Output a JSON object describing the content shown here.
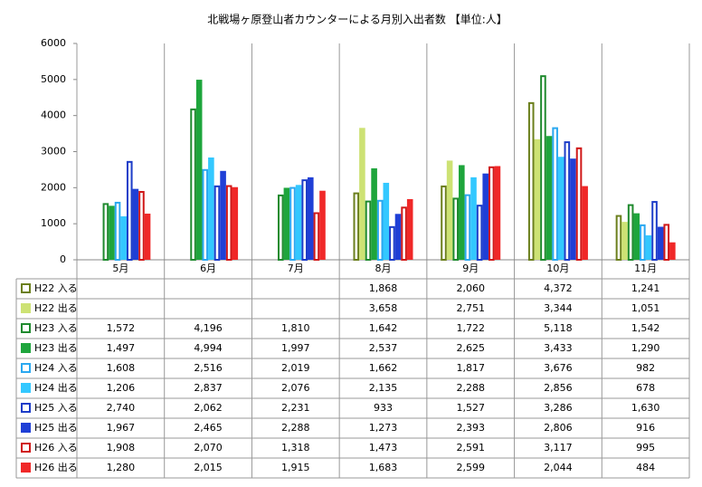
{
  "chart_data": {
    "type": "bar",
    "title": "北戦場ヶ原登山者カウンターによる月別入出者数 【単位:人】",
    "categories": [
      "5月",
      "6月",
      "7月",
      "8月",
      "9月",
      "10月",
      "11月"
    ],
    "ylim": [
      0,
      6000
    ],
    "yticks": [
      0,
      1000,
      2000,
      3000,
      4000,
      5000,
      6000
    ],
    "grid": true,
    "series": [
      {
        "name": "H22 入る",
        "color": "#6b7f1c",
        "style": "outline",
        "values": [
          null,
          null,
          null,
          1868,
          2060,
          4372,
          1241
        ],
        "value_labels": [
          null,
          null,
          null,
          "1,868",
          "2,060",
          "4,372",
          "1,241"
        ]
      },
      {
        "name": "H22 出る",
        "color": "#cde274",
        "style": "solid",
        "values": [
          null,
          null,
          null,
          3658,
          2751,
          3344,
          1051
        ],
        "value_labels": [
          null,
          null,
          null,
          "3,658",
          "2,751",
          "3,344",
          "1,051"
        ]
      },
      {
        "name": "H23 入る",
        "color": "#1f8a2e",
        "style": "outline",
        "values": [
          1572,
          4196,
          1810,
          1642,
          1722,
          5118,
          1542
        ],
        "value_labels": [
          "1,572",
          "4,196",
          "1,810",
          "1,642",
          "1,722",
          "5,118",
          "1,542"
        ]
      },
      {
        "name": "H23 出る",
        "color": "#1ea53c",
        "style": "solid",
        "values": [
          1497,
          4994,
          1997,
          2537,
          2625,
          3433,
          1290
        ],
        "value_labels": [
          "1,497",
          "4,994",
          "1,997",
          "2,537",
          "2,625",
          "3,433",
          "1,290"
        ]
      },
      {
        "name": "H24 入る",
        "color": "#2aa8f0",
        "style": "outline",
        "values": [
          1608,
          2516,
          2019,
          1662,
          1817,
          3676,
          982
        ],
        "value_labels": [
          "1,608",
          "2,516",
          "2,019",
          "1,662",
          "1,817",
          "3,676",
          "982"
        ]
      },
      {
        "name": "H24 出る",
        "color": "#33c8ff",
        "style": "solid",
        "values": [
          1206,
          2837,
          2076,
          2135,
          2288,
          2856,
          678
        ],
        "value_labels": [
          "1,206",
          "2,837",
          "2,076",
          "2,135",
          "2,288",
          "2,856",
          "678"
        ]
      },
      {
        "name": "H25 入る",
        "color": "#1c3cc8",
        "style": "outline",
        "values": [
          2740,
          2062,
          2231,
          933,
          1527,
          3286,
          1630
        ],
        "value_labels": [
          "2,740",
          "2,062",
          "2,231",
          "933",
          "1,527",
          "3,286",
          "1,630"
        ]
      },
      {
        "name": "H25 出る",
        "color": "#1f3fd6",
        "style": "solid",
        "values": [
          1967,
          2465,
          2288,
          1273,
          2393,
          2806,
          916
        ],
        "value_labels": [
          "1,967",
          "2,465",
          "2,288",
          "1,273",
          "2,393",
          "2,806",
          "916"
        ]
      },
      {
        "name": "H26 入る",
        "color": "#d01818",
        "style": "outline",
        "values": [
          1908,
          2070,
          1318,
          1473,
          2591,
          3117,
          995
        ],
        "value_labels": [
          "1,908",
          "2,070",
          "1,318",
          "1,473",
          "2,591",
          "3,117",
          "995"
        ]
      },
      {
        "name": "H26 出る",
        "color": "#f02828",
        "style": "solid",
        "values": [
          1280,
          2015,
          1915,
          1683,
          2599,
          2044,
          484
        ],
        "value_labels": [
          "1,280",
          "2,015",
          "1,915",
          "1,683",
          "2,599",
          "2,044",
          "484"
        ]
      }
    ]
  }
}
